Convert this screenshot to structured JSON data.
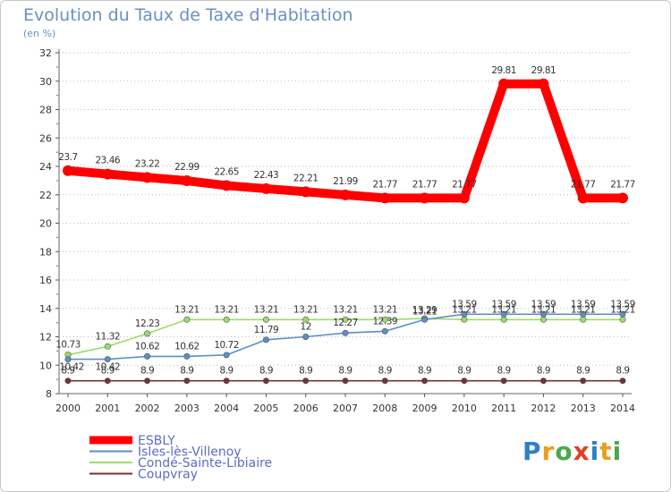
{
  "chart_data": {
    "type": "line",
    "title": "Evolution du Taux de Taxe d'Habitation",
    "unit_label": "(en %)",
    "x": [
      "2000",
      "2001",
      "2002",
      "2003",
      "2004",
      "2005",
      "2006",
      "2007",
      "2008",
      "2009",
      "2010",
      "2011",
      "2012",
      "2013",
      "2014"
    ],
    "y_ticks": [
      "8",
      "10",
      "12",
      "14",
      "16",
      "18",
      "20",
      "22",
      "24",
      "26",
      "28",
      "30",
      "32"
    ],
    "ylim": [
      8,
      32
    ],
    "grid": "horizontal-dotted",
    "legend_position": "bottom-left",
    "series": [
      {
        "name": "ESBLY",
        "color": "#ff0000",
        "style": "thick",
        "values": [
          23.7,
          23.46,
          23.22,
          22.99,
          22.65,
          22.43,
          22.21,
          21.99,
          21.77,
          21.77,
          21.77,
          29.81,
          29.81,
          21.77,
          21.77
        ],
        "labels": [
          "23.7",
          "23.46",
          "23.22",
          "22.99",
          "22.65",
          "22.43",
          "22.21",
          "21.99",
          "21.77",
          "21.77",
          "21.77",
          "29.81",
          "29.81",
          "21.77",
          "21.77"
        ]
      },
      {
        "name": "Isles-lès-Villenoy",
        "color": "#5b8fc8",
        "style": "thin",
        "values": [
          10.42,
          10.42,
          10.62,
          10.62,
          10.72,
          11.79,
          12,
          12.27,
          12.39,
          13.21,
          13.59,
          13.59,
          13.59,
          13.59,
          13.59
        ],
        "labels": [
          "10.42",
          "10.42",
          "10.62",
          "10.62",
          "10.72",
          "11.79",
          "12",
          "12.27",
          "12.39",
          "13.21",
          "13.59",
          "13.59",
          "13.59",
          "13.59",
          "13.59"
        ]
      },
      {
        "name": "Condé-Sainte-Libiaire",
        "color": "#99dd66",
        "style": "thin",
        "values": [
          10.73,
          11.32,
          12.23,
          13.21,
          13.21,
          13.21,
          13.21,
          13.21,
          13.21,
          13.29,
          13.21,
          13.21,
          13.21,
          13.21,
          13.21
        ],
        "labels": [
          "10.73",
          "11.32",
          "12.23",
          "13.21",
          "13.21",
          "13.21",
          "13.21",
          "13.21",
          "13.21",
          "13.29",
          "13.21",
          "13.21",
          "13.21",
          "13.21",
          "13.21"
        ]
      },
      {
        "name": "Coupvray",
        "color": "#7a3030",
        "style": "thin",
        "values": [
          8.9,
          8.9,
          8.9,
          8.9,
          8.9,
          8.9,
          8.9,
          8.9,
          8.9,
          8.9,
          8.9,
          8.9,
          8.9,
          8.9,
          8.9
        ],
        "labels": [
          "8.9",
          "8.9",
          "8.9",
          "8.9",
          "8.9",
          "8.9",
          "8.9",
          "8.9",
          "8.9",
          "8.9",
          "8.9",
          "8.9",
          "8.9",
          "8.9",
          "8.9"
        ]
      }
    ]
  },
  "logo": {
    "p": "P",
    "r": "r",
    "o": "o",
    "x": "x",
    "i": "i",
    "t": "t",
    "i2": "i"
  }
}
